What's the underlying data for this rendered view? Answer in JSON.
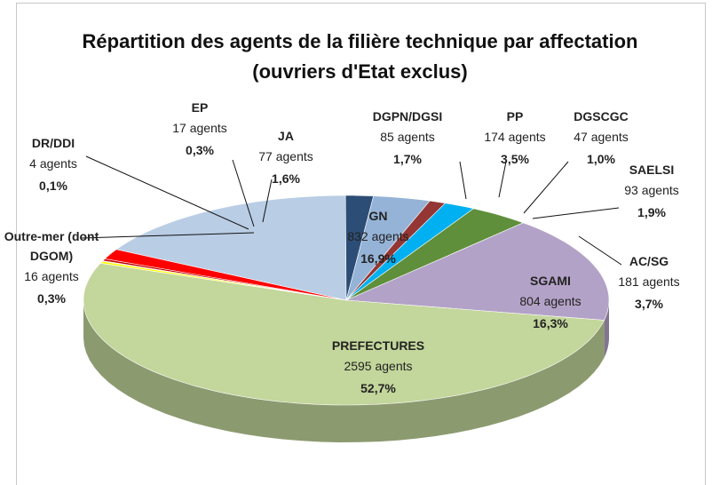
{
  "chart_data": {
    "type": "pie",
    "title": "Répartition des agents de la filière technique par affectation",
    "subtitle": "(ouvriers d'Etat exclus)",
    "categories": [
      "GN",
      "DGPN/DGSI",
      "PP",
      "DGSCGC",
      "SAELSI",
      "AC/SG",
      "SGAMI",
      "PREFECTURES",
      "Outre-mer (dont DGOM)",
      "DR/DDI",
      "EP",
      "JA"
    ],
    "values": [
      16.9,
      1.7,
      3.5,
      1.0,
      1.9,
      3.7,
      16.3,
      52.7,
      0.3,
      0.1,
      0.3,
      1.6
    ],
    "value_labels": [
      "16,9%",
      "1,7%",
      "3,5%",
      "1,0%",
      "1,9%",
      "3,7%",
      "16,3%",
      "52,7%",
      "0,3%",
      "0,1%",
      "0,3%",
      "1,6%"
    ],
    "counts": [
      832,
      85,
      174,
      47,
      93,
      181,
      804,
      2595,
      16,
      4,
      17,
      77
    ],
    "count_labels": [
      "832 agents",
      "85 agents",
      "174 agents",
      "47 agents",
      "93 agents",
      "181 agents",
      "804 agents",
      "2595 agents",
      "16 agents",
      "4 agents",
      "17 agents",
      "77 agents"
    ],
    "colors": [
      "#b9cde5",
      "#2c4d75",
      "#95b3d7",
      "#943634",
      "#00b0f0",
      "#5f8f3a",
      "#b3a2c7",
      "#c3d69b",
      "#ffff00",
      "#7f7f7f",
      "#c00000",
      "#ff0000"
    ]
  }
}
